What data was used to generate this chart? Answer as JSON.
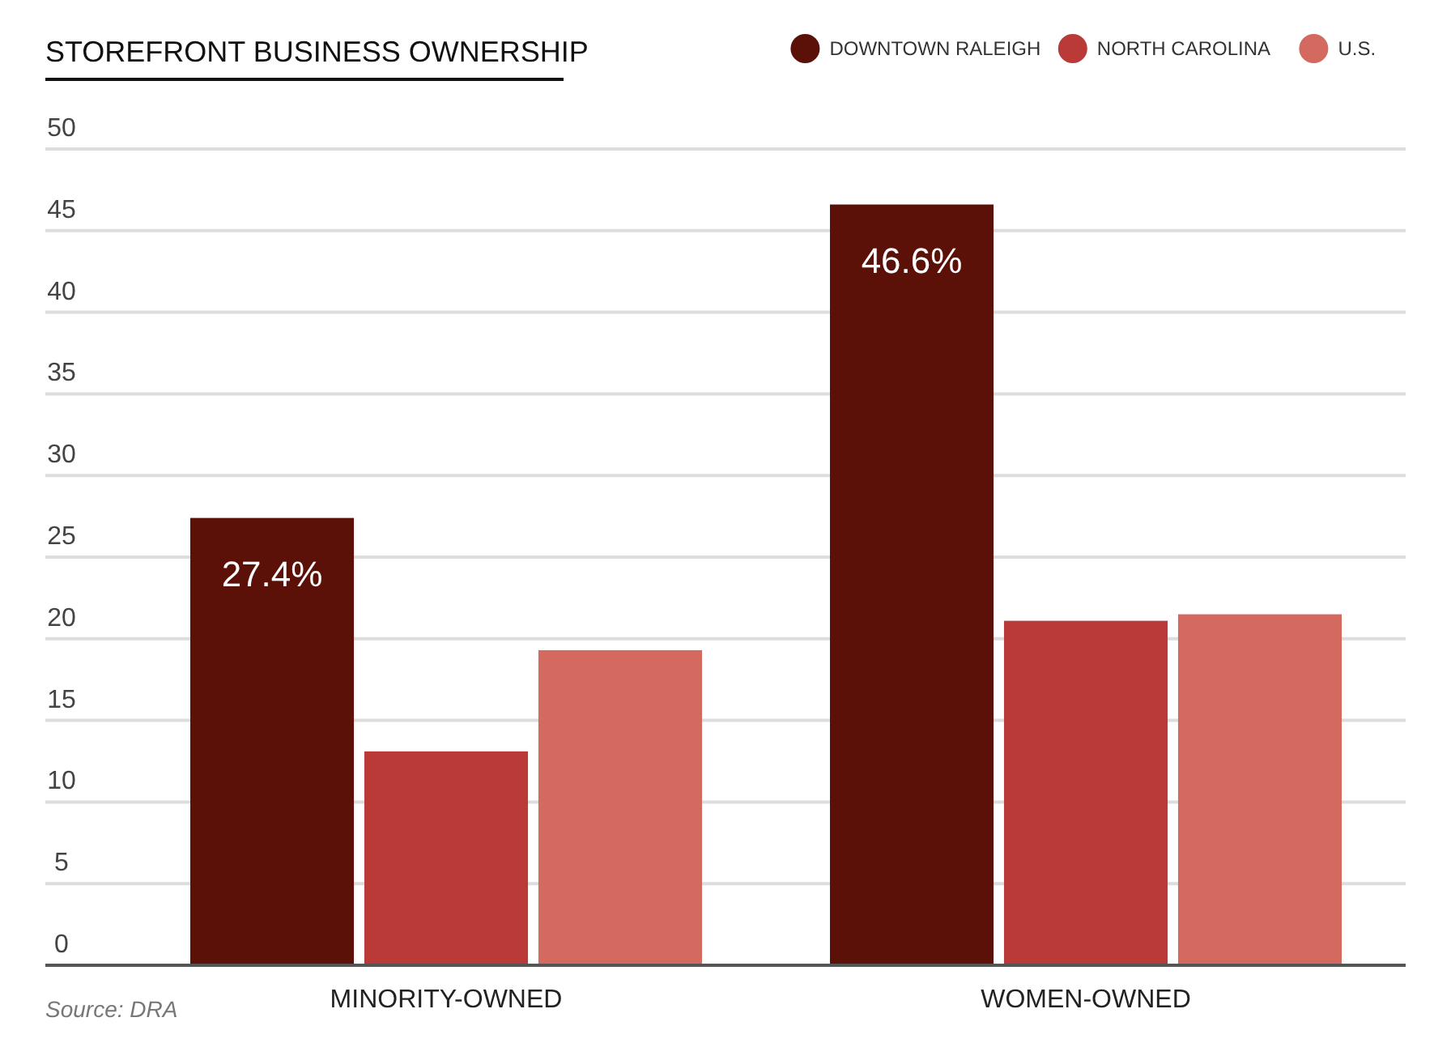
{
  "chart_data": {
    "type": "bar",
    "title": "STOREFRONT BUSINESS OWNERSHIP",
    "categories": [
      "MINORITY-OWNED",
      "WOMEN-OWNED"
    ],
    "series": [
      {
        "name": "DOWNTOWN RALEIGH",
        "color": "#5c1108",
        "values": [
          27.4,
          46.6
        ],
        "value_labels": [
          "27.4%",
          "46.6%"
        ]
      },
      {
        "name": "NORTH CAROLINA",
        "color": "#b93a36",
        "values": [
          13.1,
          21.1
        ]
      },
      {
        "name": "U.S.",
        "color": "#d4695f",
        "values": [
          19.3,
          21.5
        ]
      }
    ],
    "ylim": [
      0,
      50
    ],
    "yticks": [
      0,
      5,
      10,
      15,
      20,
      25,
      30,
      35,
      40,
      45,
      50
    ],
    "grid": "y",
    "legend": "top right",
    "annotations": [
      "Source: DRA"
    ]
  }
}
